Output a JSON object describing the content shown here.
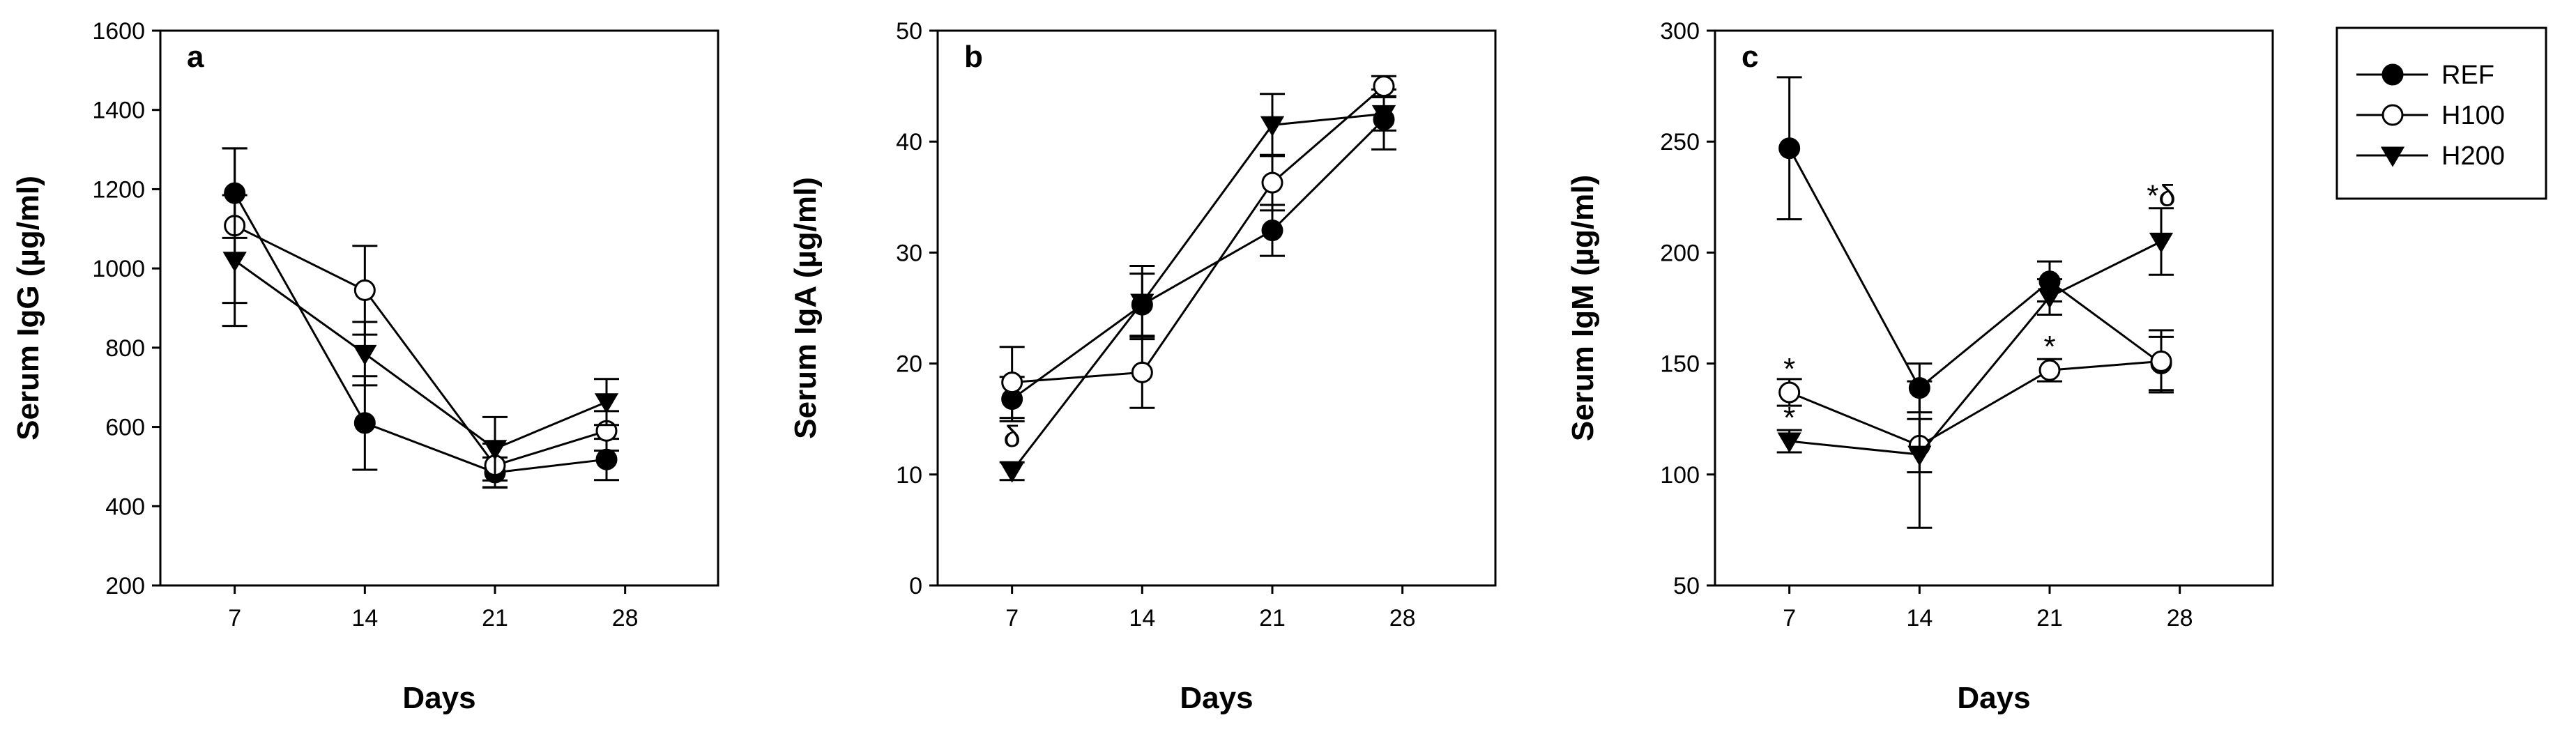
{
  "legend": [
    {
      "key": "REF",
      "label": "REF",
      "marker": "filled-circle"
    },
    {
      "key": "H100",
      "label": "H100",
      "marker": "open-circle"
    },
    {
      "key": "H200",
      "label": "H200",
      "marker": "filled-triangle-down"
    }
  ],
  "chart_data": [
    {
      "type": "line",
      "panel": "a",
      "xlabel": "Days",
      "ylabel": "Serum IgG (µg/ml)",
      "xlim": [
        3,
        33
      ],
      "xticks": [
        7,
        14,
        21,
        28
      ],
      "ylim": [
        200,
        1600
      ],
      "yticks": [
        200,
        400,
        600,
        800,
        1000,
        1200,
        1400,
        1600
      ],
      "series": [
        {
          "name": "REF",
          "x": [
            7,
            14,
            21,
            27
          ],
          "values": [
            1190,
            610,
            485,
            518
          ],
          "err": [
            113,
            118,
            38,
            52
          ]
        },
        {
          "name": "H100",
          "x": [
            7,
            14,
            21,
            27
          ],
          "values": [
            1108,
            945,
            503,
            590
          ],
          "err": [
            195,
            112,
            55,
            50
          ]
        },
        {
          "name": "H200",
          "x": [
            7,
            14,
            21,
            27
          ],
          "values": [
            1020,
            785,
            545,
            663
          ],
          "err": [
            165,
            80,
            80,
            58
          ]
        }
      ],
      "annotations": []
    },
    {
      "type": "line",
      "panel": "b",
      "xlabel": "Days",
      "ylabel": "Serum IgA (µg/ml)",
      "xlim": [
        3,
        33
      ],
      "xticks": [
        7,
        14,
        21,
        28
      ],
      "ylim": [
        0,
        50
      ],
      "yticks": [
        0,
        10,
        20,
        30,
        40,
        50
      ],
      "series": [
        {
          "name": "REF",
          "x": [
            7,
            14,
            21,
            27
          ],
          "values": [
            16.8,
            25.3,
            32.0,
            42.0
          ],
          "err": [
            2.0,
            2.8,
            2.3,
            2.7
          ]
        },
        {
          "name": "H100",
          "x": [
            7,
            14,
            21,
            27
          ],
          "values": [
            18.3,
            19.2,
            36.3,
            45.0
          ],
          "err": [
            3.2,
            3.2,
            2.5,
            0.9
          ]
        },
        {
          "name": "H200",
          "x": [
            7,
            14,
            21,
            27
          ],
          "values": [
            10.3,
            25.5,
            41.5,
            42.5
          ],
          "err": [
            0.8,
            3.3,
            2.8,
            1.5
          ]
        }
      ],
      "annotations": [
        {
          "text": "δ",
          "x": 7,
          "y": 12.5,
          "series": "H200"
        }
      ]
    },
    {
      "type": "line",
      "panel": "c",
      "xlabel": "Days",
      "ylabel": "Serum IgM (µg/ml)",
      "xlim": [
        3,
        33
      ],
      "xticks": [
        7,
        14,
        21,
        28
      ],
      "ylim": [
        50,
        300
      ],
      "yticks": [
        50,
        100,
        150,
        200,
        250,
        300
      ],
      "series": [
        {
          "name": "REF",
          "x": [
            7,
            14,
            21,
            27
          ],
          "values": [
            247,
            139,
            187,
            150
          ],
          "err": [
            32,
            11,
            9,
            12
          ]
        },
        {
          "name": "H100",
          "x": [
            7,
            14,
            21,
            27
          ],
          "values": [
            137,
            113,
            147,
            151
          ],
          "err": [
            6,
            12,
            5,
            14
          ]
        },
        {
          "name": "H200",
          "x": [
            7,
            14,
            21,
            27
          ],
          "values": [
            115,
            109,
            180,
            205
          ],
          "err": [
            5,
            33,
            8,
            15
          ]
        }
      ],
      "annotations": [
        {
          "text": "*",
          "x": 7,
          "y": 143,
          "series": "H100"
        },
        {
          "text": "*",
          "x": 7,
          "y": 121,
          "series": "H200"
        },
        {
          "text": "*",
          "x": 21,
          "y": 153,
          "series": "H100"
        },
        {
          "text": "*δ",
          "x": 27,
          "y": 221,
          "series": "H200"
        }
      ]
    }
  ]
}
